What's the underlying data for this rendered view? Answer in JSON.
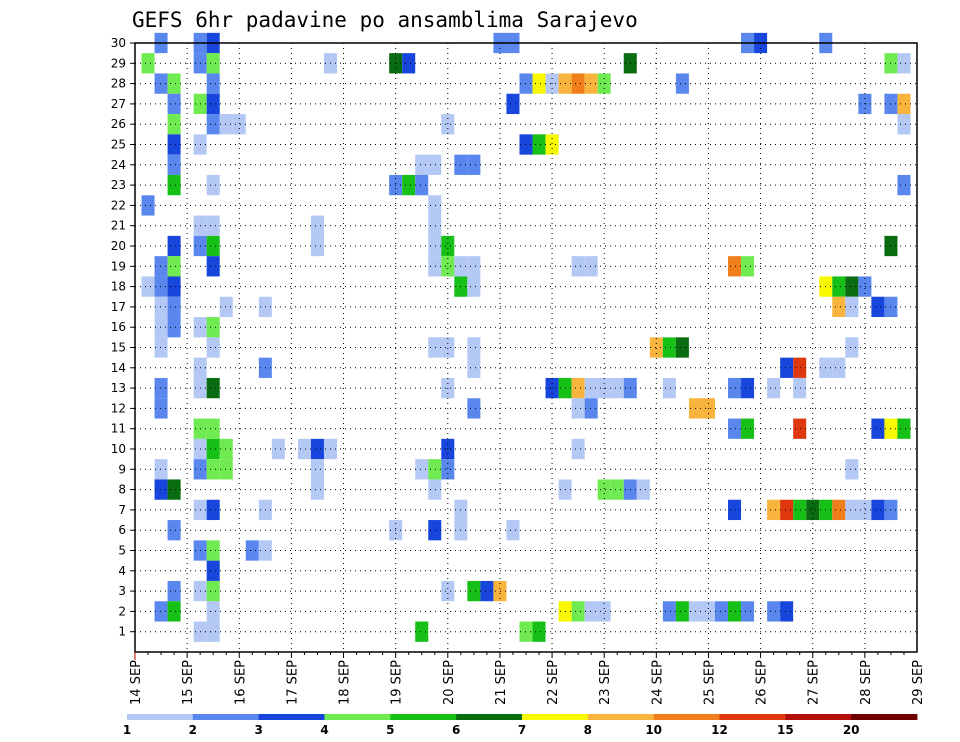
{
  "chart_data": {
    "type": "heatmap",
    "title": "GEFS 6hr padavine po ansamblima Sarajevo",
    "xlabel": "",
    "ylabel": "",
    "x_ticks": [
      "14 SEP",
      "15 SEP",
      "16 SEP",
      "17 SEP",
      "18 SEP",
      "19 SEP",
      "20 SEP",
      "21 SEP",
      "22 SEP",
      "23 SEP",
      "24 SEP",
      "25 SEP",
      "26 SEP",
      "27 SEP",
      "28 SEP",
      "29 SEP"
    ],
    "x_range_steps": 60,
    "steps_per_day": 4,
    "y_ticks": [
      1,
      2,
      3,
      4,
      5,
      6,
      7,
      8,
      9,
      10,
      11,
      12,
      13,
      14,
      15,
      16,
      17,
      18,
      19,
      20,
      21,
      22,
      23,
      24,
      25,
      26,
      27,
      28,
      29,
      30
    ],
    "y_range": [
      0,
      30
    ],
    "grid": true,
    "legend_position": "bottom",
    "legend_labels": [
      "1",
      "2",
      "3",
      "4",
      "5",
      "6",
      "7",
      "8",
      "10",
      "12",
      "15",
      "20"
    ],
    "levels": [
      1,
      2,
      3,
      4,
      5,
      6,
      7,
      8,
      10,
      12,
      15,
      20
    ],
    "colors": [
      "#b4c8f5",
      "#5a87ee",
      "#1846dc",
      "#6fea50",
      "#16c016",
      "#0a6c10",
      "#f8f800",
      "#f8b43c",
      "#f07e1a",
      "#e0380e",
      "#b40c0a",
      "#6e0000"
    ],
    "cells": [
      [
        2,
        30,
        2
      ],
      [
        5,
        30,
        2
      ],
      [
        6,
        30,
        3
      ],
      [
        28,
        30,
        2
      ],
      [
        29,
        30,
        2
      ],
      [
        47,
        30,
        2
      ],
      [
        48,
        30,
        3
      ],
      [
        53,
        30,
        2
      ],
      [
        1,
        29,
        4
      ],
      [
        5,
        29,
        2
      ],
      [
        6,
        29,
        4
      ],
      [
        15,
        29,
        1
      ],
      [
        20,
        29,
        6
      ],
      [
        21,
        29,
        3
      ],
      [
        38,
        29,
        6
      ],
      [
        58,
        29,
        4
      ],
      [
        59,
        29,
        1
      ],
      [
        2,
        28,
        2
      ],
      [
        3,
        28,
        4
      ],
      [
        6,
        28,
        2
      ],
      [
        30,
        28,
        2
      ],
      [
        31,
        28,
        7
      ],
      [
        32,
        28,
        1
      ],
      [
        33,
        28,
        8
      ],
      [
        34,
        28,
        9
      ],
      [
        35,
        28,
        8
      ],
      [
        36,
        28,
        4
      ],
      [
        42,
        28,
        2
      ],
      [
        3,
        27,
        2
      ],
      [
        5,
        27,
        4
      ],
      [
        6,
        27,
        3
      ],
      [
        29,
        27,
        3
      ],
      [
        56,
        27,
        2
      ],
      [
        58,
        27,
        2
      ],
      [
        59,
        27,
        8
      ],
      [
        3,
        26,
        4
      ],
      [
        6,
        26,
        2
      ],
      [
        7,
        26,
        1
      ],
      [
        8,
        26,
        1
      ],
      [
        24,
        26,
        1
      ],
      [
        59,
        26,
        1
      ],
      [
        3,
        25,
        3
      ],
      [
        5,
        25,
        1
      ],
      [
        30,
        25,
        3
      ],
      [
        31,
        25,
        5
      ],
      [
        32,
        25,
        7
      ],
      [
        3,
        24,
        2
      ],
      [
        22,
        24,
        1
      ],
      [
        23,
        24,
        1
      ],
      [
        25,
        24,
        2
      ],
      [
        26,
        24,
        2
      ],
      [
        3,
        23,
        5
      ],
      [
        6,
        23,
        1
      ],
      [
        20,
        23,
        2
      ],
      [
        21,
        23,
        5
      ],
      [
        22,
        23,
        2
      ],
      [
        59,
        23,
        2
      ],
      [
        1,
        22,
        2
      ],
      [
        23,
        22,
        1
      ],
      [
        5,
        21,
        1
      ],
      [
        6,
        21,
        1
      ],
      [
        14,
        21,
        1
      ],
      [
        23,
        21,
        1
      ],
      [
        3,
        20,
        3
      ],
      [
        5,
        20,
        2
      ],
      [
        6,
        20,
        5
      ],
      [
        14,
        20,
        1
      ],
      [
        23,
        20,
        1
      ],
      [
        24,
        20,
        5
      ],
      [
        58,
        20,
        6
      ],
      [
        2,
        19,
        2
      ],
      [
        3,
        19,
        4
      ],
      [
        6,
        19,
        3
      ],
      [
        23,
        19,
        1
      ],
      [
        24,
        19,
        4
      ],
      [
        25,
        19,
        1
      ],
      [
        26,
        19,
        1
      ],
      [
        34,
        19,
        1
      ],
      [
        35,
        19,
        1
      ],
      [
        46,
        19,
        9
      ],
      [
        47,
        19,
        4
      ],
      [
        1,
        18,
        1
      ],
      [
        2,
        18,
        2
      ],
      [
        3,
        18,
        3
      ],
      [
        25,
        18,
        5
      ],
      [
        26,
        18,
        1
      ],
      [
        53,
        18,
        7
      ],
      [
        54,
        18,
        5
      ],
      [
        55,
        18,
        6
      ],
      [
        56,
        18,
        2
      ],
      [
        2,
        17,
        1
      ],
      [
        3,
        17,
        2
      ],
      [
        7,
        17,
        1
      ],
      [
        10,
        17,
        1
      ],
      [
        54,
        17,
        8
      ],
      [
        55,
        17,
        1
      ],
      [
        57,
        17,
        3
      ],
      [
        58,
        17,
        2
      ],
      [
        2,
        16,
        1
      ],
      [
        3,
        16,
        2
      ],
      [
        5,
        16,
        1
      ],
      [
        6,
        16,
        4
      ],
      [
        2,
        15,
        1
      ],
      [
        6,
        15,
        1
      ],
      [
        23,
        15,
        1
      ],
      [
        24,
        15,
        1
      ],
      [
        26,
        15,
        1
      ],
      [
        40,
        15,
        8
      ],
      [
        41,
        15,
        5
      ],
      [
        42,
        15,
        6
      ],
      [
        55,
        15,
        1
      ],
      [
        5,
        14,
        1
      ],
      [
        10,
        14,
        2
      ],
      [
        26,
        14,
        1
      ],
      [
        50,
        14,
        3
      ],
      [
        51,
        14,
        10
      ],
      [
        53,
        14,
        1
      ],
      [
        54,
        14,
        1
      ],
      [
        2,
        13,
        2
      ],
      [
        5,
        13,
        1
      ],
      [
        6,
        13,
        6
      ],
      [
        24,
        13,
        1
      ],
      [
        32,
        13,
        3
      ],
      [
        33,
        13,
        5
      ],
      [
        34,
        13,
        8
      ],
      [
        35,
        13,
        1
      ],
      [
        36,
        13,
        1
      ],
      [
        37,
        13,
        1
      ],
      [
        38,
        13,
        2
      ],
      [
        41,
        13,
        1
      ],
      [
        46,
        13,
        2
      ],
      [
        47,
        13,
        3
      ],
      [
        49,
        13,
        1
      ],
      [
        51,
        13,
        1
      ],
      [
        2,
        12,
        2
      ],
      [
        26,
        12,
        2
      ],
      [
        34,
        12,
        1
      ],
      [
        35,
        12,
        2
      ],
      [
        43,
        12,
        8
      ],
      [
        44,
        12,
        8
      ],
      [
        5,
        11,
        4
      ],
      [
        6,
        11,
        4
      ],
      [
        46,
        11,
        2
      ],
      [
        47,
        11,
        5
      ],
      [
        51,
        11,
        10
      ],
      [
        57,
        11,
        3
      ],
      [
        58,
        11,
        7
      ],
      [
        59,
        11,
        5
      ],
      [
        5,
        10,
        1
      ],
      [
        6,
        10,
        5
      ],
      [
        7,
        10,
        4
      ],
      [
        11,
        10,
        1
      ],
      [
        13,
        10,
        1
      ],
      [
        14,
        10,
        3
      ],
      [
        15,
        10,
        1
      ],
      [
        24,
        10,
        3
      ],
      [
        34,
        10,
        1
      ],
      [
        2,
        9,
        1
      ],
      [
        5,
        9,
        2
      ],
      [
        6,
        9,
        4
      ],
      [
        7,
        9,
        4
      ],
      [
        14,
        9,
        1
      ],
      [
        22,
        9,
        1
      ],
      [
        23,
        9,
        4
      ],
      [
        24,
        9,
        2
      ],
      [
        55,
        9,
        1
      ],
      [
        2,
        8,
        3
      ],
      [
        3,
        8,
        6
      ],
      [
        14,
        8,
        1
      ],
      [
        23,
        8,
        1
      ],
      [
        33,
        8,
        1
      ],
      [
        36,
        8,
        4
      ],
      [
        37,
        8,
        4
      ],
      [
        38,
        8,
        2
      ],
      [
        39,
        8,
        1
      ],
      [
        5,
        7,
        1
      ],
      [
        6,
        7,
        3
      ],
      [
        10,
        7,
        1
      ],
      [
        25,
        7,
        1
      ],
      [
        46,
        7,
        3
      ],
      [
        49,
        7,
        8
      ],
      [
        50,
        7,
        10
      ],
      [
        51,
        7,
        5
      ],
      [
        52,
        7,
        6
      ],
      [
        53,
        7,
        5
      ],
      [
        54,
        7,
        9
      ],
      [
        55,
        7,
        1
      ],
      [
        56,
        7,
        1
      ],
      [
        57,
        7,
        3
      ],
      [
        58,
        7,
        2
      ],
      [
        3,
        6,
        2
      ],
      [
        20,
        6,
        1
      ],
      [
        23,
        6,
        3
      ],
      [
        25,
        6,
        1
      ],
      [
        29,
        6,
        1
      ],
      [
        5,
        5,
        2
      ],
      [
        6,
        5,
        4
      ],
      [
        9,
        5,
        2
      ],
      [
        10,
        5,
        1
      ],
      [
        6,
        4,
        3
      ],
      [
        3,
        3,
        2
      ],
      [
        5,
        3,
        1
      ],
      [
        6,
        3,
        4
      ],
      [
        24,
        3,
        1
      ],
      [
        26,
        3,
        5
      ],
      [
        27,
        3,
        3
      ],
      [
        28,
        3,
        8
      ],
      [
        2,
        2,
        2
      ],
      [
        3,
        2,
        5
      ],
      [
        6,
        2,
        1
      ],
      [
        33,
        2,
        7
      ],
      [
        34,
        2,
        4
      ],
      [
        35,
        2,
        1
      ],
      [
        36,
        2,
        1
      ],
      [
        41,
        2,
        2
      ],
      [
        42,
        2,
        5
      ],
      [
        43,
        2,
        1
      ],
      [
        44,
        2,
        1
      ],
      [
        45,
        2,
        2
      ],
      [
        46,
        2,
        5
      ],
      [
        47,
        2,
        2
      ],
      [
        49,
        2,
        2
      ],
      [
        50,
        2,
        3
      ],
      [
        5,
        1,
        1
      ],
      [
        6,
        1,
        1
      ],
      [
        22,
        1,
        5
      ],
      [
        30,
        1,
        4
      ],
      [
        31,
        1,
        5
      ]
    ]
  }
}
